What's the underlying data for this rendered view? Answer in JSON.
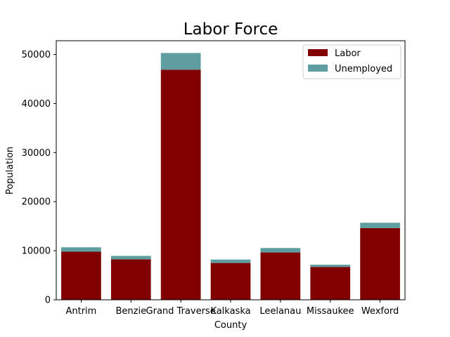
{
  "chart_data": {
    "type": "bar",
    "stacked": true,
    "title": "Labor Force",
    "xlabel": "County",
    "ylabel": "Population",
    "categories": [
      "Antrim",
      "Benzie",
      "Grand Traverse",
      "Kalkaska",
      "Leelanau",
      "Missaukee",
      "Wexford"
    ],
    "series": [
      {
        "name": "Labor",
        "color": "#800000",
        "values": [
          9800,
          8250,
          46900,
          7500,
          9650,
          6700,
          14600
        ]
      },
      {
        "name": "Unemployed",
        "color": "#5f9ea0",
        "values": [
          900,
          700,
          3400,
          700,
          900,
          450,
          1100
        ]
      }
    ],
    "ylim": [
      0,
      52800
    ],
    "yticks": [
      0,
      10000,
      20000,
      30000,
      40000,
      50000
    ],
    "grid": false,
    "legend_position": "top-right"
  }
}
